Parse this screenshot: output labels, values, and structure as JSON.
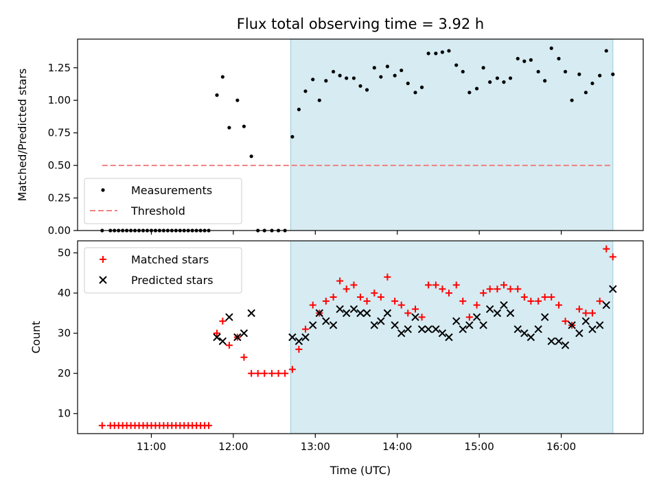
{
  "chart_data": [
    {
      "type": "scatter",
      "title": "Flux total observing time = 3.92 h",
      "xlabel": "",
      "ylabel": "Matched/Predicted stars",
      "ylim": [
        0,
        1.47
      ],
      "yticks": [
        "0.00",
        "0.25",
        "0.50",
        "0.75",
        "1.00",
        "1.25"
      ],
      "legend_position": "lower-left",
      "observing_window_hours": [
        12.7,
        16.63
      ],
      "series": [
        {
          "name": "Measurements",
          "marker": "dot",
          "color": "#000000",
          "x": [
            10.4,
            10.5,
            10.55,
            10.6,
            10.65,
            10.7,
            10.75,
            10.8,
            10.85,
            10.9,
            10.95,
            11.0,
            11.05,
            11.1,
            11.15,
            11.2,
            11.25,
            11.3,
            11.35,
            11.4,
            11.45,
            11.5,
            11.55,
            11.6,
            11.65,
            11.7,
            11.8,
            11.87,
            11.95,
            12.05,
            12.13,
            12.22,
            12.3,
            12.38,
            12.47,
            12.55,
            12.63,
            12.72,
            12.8,
            12.88,
            12.97,
            13.05,
            13.13,
            13.22,
            13.3,
            13.38,
            13.47,
            13.55,
            13.63,
            13.72,
            13.8,
            13.88,
            13.97,
            14.05,
            14.13,
            14.22,
            14.3,
            14.38,
            14.47,
            14.55,
            14.63,
            14.72,
            14.8,
            14.88,
            14.97,
            15.05,
            15.13,
            15.22,
            15.3,
            15.38,
            15.47,
            15.55,
            15.63,
            15.72,
            15.8,
            15.88,
            15.97,
            16.05,
            16.13,
            16.22,
            16.3,
            16.38,
            16.47,
            16.55,
            16.63
          ],
          "y": [
            0,
            0,
            0,
            0,
            0,
            0,
            0,
            0,
            0,
            0,
            0,
            0,
            0,
            0,
            0,
            0,
            0,
            0,
            0,
            0,
            0,
            0,
            0,
            0,
            0,
            0,
            1.04,
            1.18,
            0.79,
            1.0,
            0.8,
            0.57,
            0,
            0,
            0,
            0,
            0,
            0.72,
            0.93,
            1.07,
            1.16,
            1.0,
            1.15,
            1.22,
            1.19,
            1.17,
            1.17,
            1.11,
            1.08,
            1.25,
            1.18,
            1.26,
            1.19,
            1.23,
            1.13,
            1.06,
            1.1,
            1.36,
            1.36,
            1.37,
            1.38,
            1.27,
            1.22,
            1.06,
            1.09,
            1.25,
            1.14,
            1.17,
            1.14,
            1.17,
            1.32,
            1.3,
            1.31,
            1.22,
            1.15,
            1.4,
            1.32,
            1.22,
            1.0,
            1.2,
            1.06,
            1.13,
            1.19,
            1.38,
            1.2
          ]
        },
        {
          "name": "Threshold",
          "marker": "dashed-line",
          "color": "#f08080",
          "x": [
            10.4,
            16.63
          ],
          "y": [
            0.5,
            0.5
          ]
        }
      ]
    },
    {
      "type": "scatter",
      "title": "",
      "xlabel": "Time (UTC)",
      "ylabel": "Count",
      "ylim": [
        5,
        53
      ],
      "yticks": [
        "10",
        "20",
        "30",
        "40",
        "50"
      ],
      "xlim": [
        10.1,
        17.0
      ],
      "xticks": [
        {
          "value": 11,
          "label": "11:00"
        },
        {
          "value": 12,
          "label": "12:00"
        },
        {
          "value": 13,
          "label": "13:00"
        },
        {
          "value": 14,
          "label": "14:00"
        },
        {
          "value": 15,
          "label": "15:00"
        },
        {
          "value": 16,
          "label": "16:00"
        }
      ],
      "legend_position": "upper-left",
      "observing_window_hours": [
        12.7,
        16.63
      ],
      "series": [
        {
          "name": "Matched stars",
          "marker": "plus",
          "color": "#ff0000",
          "x": [
            10.4,
            10.5,
            10.55,
            10.6,
            10.65,
            10.7,
            10.75,
            10.8,
            10.85,
            10.9,
            10.95,
            11.0,
            11.05,
            11.1,
            11.15,
            11.2,
            11.25,
            11.3,
            11.35,
            11.4,
            11.45,
            11.5,
            11.55,
            11.6,
            11.65,
            11.7,
            11.8,
            11.87,
            11.95,
            12.05,
            12.13,
            12.22,
            12.3,
            12.38,
            12.47,
            12.55,
            12.63,
            12.72,
            12.8,
            12.88,
            12.97,
            13.05,
            13.13,
            13.22,
            13.3,
            13.38,
            13.47,
            13.55,
            13.63,
            13.72,
            13.8,
            13.88,
            13.97,
            14.05,
            14.13,
            14.22,
            14.3,
            14.38,
            14.47,
            14.55,
            14.63,
            14.72,
            14.8,
            14.88,
            14.97,
            15.05,
            15.13,
            15.22,
            15.3,
            15.38,
            15.47,
            15.55,
            15.63,
            15.72,
            15.8,
            15.88,
            15.97,
            16.05,
            16.13,
            16.22,
            16.3,
            16.38,
            16.47,
            16.55,
            16.63
          ],
          "y": [
            7,
            7,
            7,
            7,
            7,
            7,
            7,
            7,
            7,
            7,
            7,
            7,
            7,
            7,
            7,
            7,
            7,
            7,
            7,
            7,
            7,
            7,
            7,
            7,
            7,
            7,
            30,
            33,
            27,
            29,
            24,
            20,
            20,
            20,
            20,
            20,
            20,
            21,
            26,
            31,
            37,
            35,
            38,
            39,
            43,
            41,
            42,
            39,
            38,
            40,
            39,
            44,
            38,
            37,
            35,
            36,
            34,
            42,
            42,
            41,
            40,
            42,
            38,
            34,
            37,
            40,
            41,
            41,
            42,
            41,
            41,
            39,
            38,
            38,
            39,
            39,
            37,
            33,
            32,
            36,
            35,
            35,
            38,
            51,
            49
          ]
        },
        {
          "name": "Predicted stars",
          "marker": "x",
          "color": "#000000",
          "x": [
            11.8,
            11.87,
            11.95,
            12.05,
            12.13,
            12.22,
            12.72,
            12.8,
            12.88,
            12.97,
            13.05,
            13.13,
            13.22,
            13.3,
            13.38,
            13.47,
            13.55,
            13.63,
            13.72,
            13.8,
            13.88,
            13.97,
            14.05,
            14.13,
            14.22,
            14.3,
            14.38,
            14.47,
            14.55,
            14.63,
            14.72,
            14.8,
            14.88,
            14.97,
            15.05,
            15.13,
            15.22,
            15.3,
            15.38,
            15.47,
            15.55,
            15.63,
            15.72,
            15.8,
            15.88,
            15.97,
            16.05,
            16.13,
            16.22,
            16.3,
            16.38,
            16.47,
            16.55,
            16.63
          ],
          "y": [
            29,
            28,
            34,
            29,
            30,
            35,
            29,
            28,
            29,
            32,
            35,
            33,
            32,
            36,
            35,
            36,
            35,
            35,
            32,
            33,
            35,
            32,
            30,
            31,
            34,
            31,
            31,
            31,
            30,
            29,
            33,
            31,
            32,
            34,
            32,
            36,
            35,
            37,
            35,
            31,
            30,
            29,
            31,
            34,
            28,
            28,
            27,
            32,
            30,
            33,
            31,
            32,
            37,
            41
          ]
        }
      ]
    }
  ]
}
